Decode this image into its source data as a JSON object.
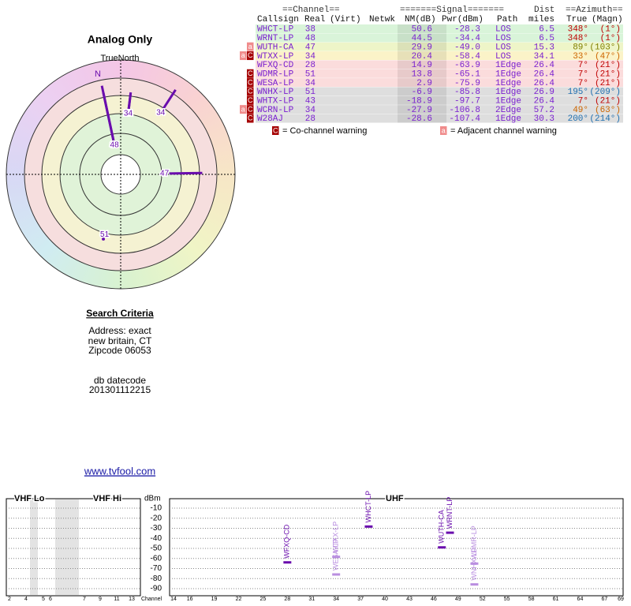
{
  "header": {
    "groups": [
      "==Channel==",
      "=======Signal=======",
      "Dist",
      "==Azimuth=="
    ],
    "columns": [
      "Callsign",
      "Real",
      "(Virt)",
      "Netwk",
      "NM(dB)",
      "Pwr(dBm)",
      "Path",
      "miles",
      "True",
      "(Magn)"
    ]
  },
  "table": {
    "text_color": "#7a1fd0",
    "rows": [
      {
        "badges": [],
        "callsign": "WHCT-LP",
        "real": "38",
        "nm": "50.6",
        "pwr": "-28.3",
        "path": "LOS",
        "dist": "6.5",
        "true": "348°",
        "magn": "(1°)",
        "color": "#d9f4d9",
        "az_color": "#c00000"
      },
      {
        "badges": [],
        "callsign": "WRNT-LP",
        "real": "48",
        "nm": "44.5",
        "pwr": "-34.4",
        "path": "LOS",
        "dist": "6.5",
        "true": "348°",
        "magn": "(1°)",
        "color": "#d9f4d9",
        "az_color": "#c00000"
      },
      {
        "badges": [
          "a"
        ],
        "callsign": "WUTH-CA",
        "real": "47",
        "nm": "29.9",
        "pwr": "-49.0",
        "path": "LOS",
        "dist": "15.3",
        "true": "89°",
        "magn": "(103°)",
        "color": "#eef5c8",
        "az_color": "#808000"
      },
      {
        "badges": [
          "a",
          "C"
        ],
        "callsign": "WTXX-LP",
        "real": "34",
        "nm": "20.4",
        "pwr": "-58.4",
        "path": "LOS",
        "dist": "34.1",
        "true": "33°",
        "magn": "(47°)",
        "color": "#fbf3c8",
        "az_color": "#cc6600"
      },
      {
        "badges": [],
        "callsign": "WFXQ-CD",
        "real": "28",
        "nm": "14.9",
        "pwr": "-63.9",
        "path": "1Edge",
        "dist": "26.4",
        "true": "7°",
        "magn": "(21°)",
        "color": "#fbdcdc",
        "az_color": "#c00000"
      },
      {
        "badges": [
          "C"
        ],
        "callsign": "WDMR-LP",
        "real": "51",
        "nm": "13.8",
        "pwr": "-65.1",
        "path": "1Edge",
        "dist": "26.4",
        "true": "7°",
        "magn": "(21°)",
        "color": "#fbdcdc",
        "az_color": "#c00000"
      },
      {
        "badges": [
          "C"
        ],
        "callsign": "WESA-LP",
        "real": "34",
        "nm": "2.9",
        "pwr": "-75.9",
        "path": "1Edge",
        "dist": "26.4",
        "true": "7°",
        "magn": "(21°)",
        "color": "#fbdcdc",
        "az_color": "#c00000"
      },
      {
        "badges": [
          "C"
        ],
        "callsign": "WNHX-LP",
        "real": "51",
        "nm": "-6.9",
        "pwr": "-85.8",
        "path": "1Edge",
        "dist": "26.9",
        "true": "195°",
        "magn": "(209°)",
        "color": "#dedede",
        "az_color": "#1f6fb0"
      },
      {
        "badges": [
          "C"
        ],
        "callsign": "WHTX-LP",
        "real": "43",
        "nm": "-18.9",
        "pwr": "-97.7",
        "path": "1Edge",
        "dist": "26.4",
        "true": "7°",
        "magn": "(21°)",
        "color": "#dedede",
        "az_color": "#c00000"
      },
      {
        "badges": [
          "a",
          "C"
        ],
        "callsign": "WCRN-LP",
        "real": "34",
        "nm": "-27.9",
        "pwr": "-106.8",
        "path": "2Edge",
        "dist": "57.2",
        "true": "49°",
        "magn": "(63°)",
        "color": "#dedede",
        "az_color": "#cc6600"
      },
      {
        "badges": [
          "C"
        ],
        "callsign": "W28AJ",
        "real": "28",
        "nm": "-28.6",
        "pwr": "-107.4",
        "path": "1Edge",
        "dist": "30.3",
        "true": "200°",
        "magn": "(214°)",
        "color": "#dedede",
        "az_color": "#1f6fb0"
      }
    ]
  },
  "badge_colors": {
    "C": "#a50000",
    "a": "#f08c8c"
  },
  "legend": [
    {
      "badge": "C",
      "text": "= Co-channel warning"
    },
    {
      "badge": "a",
      "text": "= Adjacent channel warning"
    }
  ],
  "search": {
    "title": "Search Criteria",
    "lines": [
      "Address: exact",
      "new britain, CT",
      "Zipcode 06053"
    ],
    "datecode_label": "db datecode",
    "datecode": "201301112215"
  },
  "link": "www.tvfool.com",
  "chart_data": [
    {
      "type": "polar",
      "title": "Analog Only",
      "north_label": "TrueNorth",
      "north_marker": "N",
      "color": "#6a0dad",
      "rlim": [
        0,
        60
      ],
      "points": [
        {
          "label": "38",
          "azimuth": 348,
          "dist": 6.5,
          "nm": 50.6
        },
        {
          "label": "48",
          "azimuth": 348,
          "dist": 6.5,
          "nm": 44.5
        },
        {
          "label": "47",
          "azimuth": 89,
          "dist": 15.3,
          "nm": 29.9
        },
        {
          "label": "34",
          "azimuth": 33,
          "dist": 34.1,
          "nm": 20.4
        },
        {
          "label": "28",
          "azimuth": 7,
          "dist": 26.4,
          "nm": 14.9
        },
        {
          "label": "51",
          "azimuth": 7,
          "dist": 26.4,
          "nm": 13.8
        },
        {
          "label": "34",
          "azimuth": 7,
          "dist": 26.4,
          "nm": 2.9
        },
        {
          "label": "51",
          "azimuth": 195,
          "dist": 26.9,
          "nm": -6.9
        }
      ]
    },
    {
      "type": "spectrum",
      "y_label": "dBm",
      "x_label": "Channel",
      "bands": [
        "VHF Lo",
        "VHF Hi",
        "UHF"
      ],
      "ylim": [
        -100,
        0
      ],
      "yticks": [
        -10,
        -20,
        -30,
        -40,
        -50,
        -60,
        -70,
        -80,
        -90
      ],
      "vhf_ticks": [
        2,
        4,
        5,
        6,
        7,
        9,
        11,
        13
      ],
      "xlim": [
        14,
        69
      ],
      "xticks": [
        14,
        16,
        19,
        22,
        25,
        28,
        31,
        34,
        37,
        40,
        43,
        46,
        49,
        52,
        55,
        58,
        61,
        64,
        67,
        69
      ],
      "stations": [
        {
          "name": "WFXQ-CD",
          "channel": 28,
          "dbm": -63.9,
          "color": "#6a0dad"
        },
        {
          "name": "WESA-LP",
          "channel": 34,
          "dbm": -75.9,
          "color": "#b98ee0"
        },
        {
          "name": "WTXX-LP",
          "channel": 34,
          "dbm": -58.4,
          "color": "#b98ee0"
        },
        {
          "name": "WHCT-LP",
          "channel": 38,
          "dbm": -28.3,
          "color": "#6a0dad"
        },
        {
          "name": "WUTH-CA",
          "channel": 47,
          "dbm": -49.0,
          "color": "#6a0dad"
        },
        {
          "name": "WRNT-LP",
          "channel": 48,
          "dbm": -34.4,
          "color": "#6a0dad"
        },
        {
          "name": "WDMR-LP",
          "channel": 51,
          "dbm": -65.1,
          "color": "#b98ee0"
        },
        {
          "name": "WNHX-LP",
          "channel": 51,
          "dbm": -85.8,
          "color": "#b98ee0"
        }
      ]
    }
  ]
}
